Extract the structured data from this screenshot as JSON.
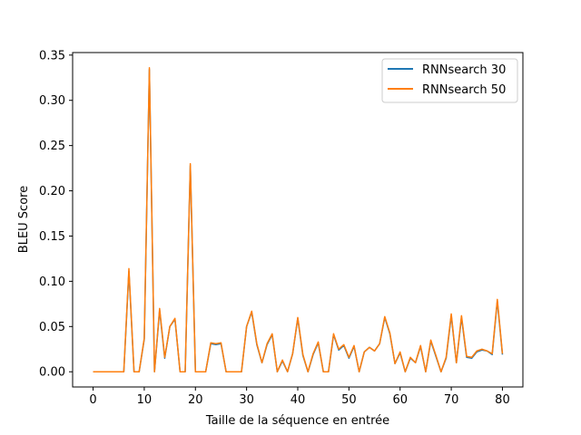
{
  "chart_data": {
    "type": "line",
    "xlabel": "Taille de la séquence en entrée",
    "ylabel": "BLEU Score",
    "xlim": [
      -4,
      84
    ],
    "ylim": [
      -0.0168,
      0.3528
    ],
    "xticks": [
      0,
      10,
      20,
      30,
      40,
      50,
      60,
      70,
      80
    ],
    "yticks": [
      0.0,
      0.05,
      0.1,
      0.15,
      0.2,
      0.25,
      0.3,
      0.35
    ],
    "xtick_labels": [
      "0",
      "10",
      "20",
      "30",
      "40",
      "50",
      "60",
      "70",
      "80"
    ],
    "ytick_labels": [
      "0.00",
      "0.05",
      "0.10",
      "0.15",
      "0.20",
      "0.25",
      "0.30",
      "0.35"
    ],
    "legend_position": "top-right",
    "grid": false,
    "x": [
      0,
      1,
      2,
      3,
      4,
      5,
      6,
      7,
      8,
      9,
      10,
      11,
      12,
      13,
      14,
      15,
      16,
      17,
      18,
      19,
      20,
      21,
      22,
      23,
      24,
      25,
      26,
      27,
      28,
      29,
      30,
      31,
      32,
      33,
      34,
      35,
      36,
      37,
      38,
      39,
      40,
      41,
      42,
      43,
      44,
      45,
      46,
      47,
      48,
      49,
      50,
      51,
      52,
      53,
      54,
      55,
      56,
      57,
      58,
      59,
      60,
      61,
      62,
      63,
      64,
      65,
      66,
      67,
      68,
      69,
      70,
      71,
      72,
      73,
      74,
      75,
      76,
      77,
      78,
      79,
      80
    ],
    "series": [
      {
        "name": "RNNsearch 30",
        "color": "#1f77b4",
        "values": [
          0,
          0,
          0,
          0,
          0,
          0,
          0,
          0.111,
          0,
          0,
          0.036,
          0.334,
          0,
          0.068,
          0.015,
          0.05,
          0.058,
          0,
          0,
          0.228,
          0,
          0,
          0,
          0.031,
          0.03,
          0.031,
          0,
          0,
          0,
          0,
          0.05,
          0.066,
          0.03,
          0.01,
          0.03,
          0.041,
          0,
          0.012,
          0,
          0.02,
          0.059,
          0.018,
          0,
          0.019,
          0.032,
          0,
          0,
          0.041,
          0.024,
          0.029,
          0.015,
          0.028,
          0,
          0.022,
          0.027,
          0.023,
          0.031,
          0.06,
          0.042,
          0.009,
          0.021,
          0,
          0.015,
          0.01,
          0.028,
          0,
          0.034,
          0.017,
          0,
          0.015,
          0.062,
          0.01,
          0.06,
          0.016,
          0.015,
          0.022,
          0.024,
          0.023,
          0.019,
          0.078,
          0.019
        ]
      },
      {
        "name": "RNNsearch 50",
        "color": "#ff7f0e",
        "values": [
          0,
          0,
          0,
          0,
          0,
          0,
          0,
          0.114,
          0,
          0,
          0.037,
          0.336,
          0,
          0.07,
          0.016,
          0.05,
          0.059,
          0,
          0,
          0.23,
          0,
          0,
          0,
          0.032,
          0.031,
          0.032,
          0,
          0,
          0,
          0,
          0.05,
          0.067,
          0.031,
          0.01,
          0.031,
          0.042,
          0,
          0.013,
          0,
          0.02,
          0.06,
          0.019,
          0,
          0.02,
          0.033,
          0,
          0,
          0.042,
          0.025,
          0.03,
          0.016,
          0.029,
          0,
          0.022,
          0.027,
          0.023,
          0.031,
          0.061,
          0.043,
          0.009,
          0.022,
          0,
          0.016,
          0.01,
          0.029,
          0,
          0.035,
          0.018,
          0,
          0.016,
          0.064,
          0.01,
          0.062,
          0.017,
          0.016,
          0.023,
          0.025,
          0.023,
          0.02,
          0.08,
          0.02
        ]
      }
    ]
  }
}
